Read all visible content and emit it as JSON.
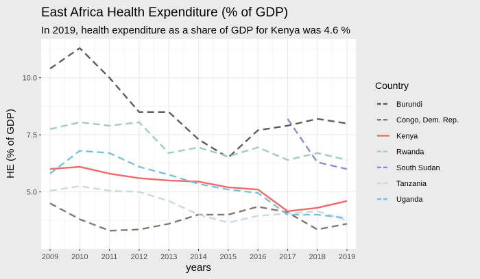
{
  "chart_data": {
    "type": "line",
    "title": "East Africa Health Expenditure  (% of GDP)",
    "subtitle": "In 2019, health expenditure as a share of GDP for Kenya was 4.6 %",
    "xlabel": "years",
    "ylabel": "HE (% of GDP)",
    "x": [
      2009,
      2010,
      2011,
      2012,
      2013,
      2014,
      2015,
      2016,
      2017,
      2018,
      2019
    ],
    "xlim": [
      2008.7,
      2019.3
    ],
    "ylim": [
      2.5,
      11.7
    ],
    "yticks": [
      5.0,
      7.5,
      10.0
    ],
    "ytick_labels": [
      "5.0",
      "7.5",
      "10.0"
    ],
    "grid": true,
    "legend_title": "Country",
    "legend_position": "right",
    "series": [
      {
        "name": "Burundi",
        "color": "#5c5c5c",
        "dash": "dashed",
        "values": [
          10.4,
          11.3,
          10.0,
          8.5,
          8.5,
          7.3,
          6.5,
          7.7,
          7.9,
          8.2,
          8.0
        ]
      },
      {
        "name": "Congo, Dem. Rep.",
        "color": "#85776f",
        "dash": "dashed",
        "values": [
          4.5,
          3.8,
          3.3,
          3.35,
          3.6,
          4.0,
          4.0,
          4.35,
          4.1,
          3.35,
          3.6
        ]
      },
      {
        "name": "Kenya",
        "color": "#f46767",
        "dash": "solid",
        "values": [
          6.0,
          6.1,
          5.8,
          5.6,
          5.5,
          5.45,
          5.2,
          5.1,
          4.15,
          4.3,
          4.6
        ]
      },
      {
        "name": "Rwanda",
        "color": "#9ecfb6",
        "dash": "dashed",
        "values": [
          7.75,
          8.05,
          7.9,
          8.05,
          6.7,
          6.95,
          6.55,
          6.95,
          6.4,
          6.7,
          6.4
        ]
      },
      {
        "name": "South Sudan",
        "color": "#9386d3",
        "dash": "dashed",
        "values": [
          null,
          null,
          null,
          null,
          null,
          null,
          null,
          null,
          8.2,
          6.3,
          6.0
        ]
      },
      {
        "name": "Tanzania",
        "color": "#c9d8e3",
        "dash": "dashed",
        "values": [
          5.05,
          5.25,
          5.05,
          5.0,
          4.6,
          4.0,
          3.65,
          3.95,
          4.05,
          4.15,
          3.75
        ]
      },
      {
        "name": "Uganda",
        "color": "#76c2de",
        "dash": "dashed",
        "values": [
          5.8,
          6.8,
          6.7,
          6.1,
          5.75,
          5.35,
          5.1,
          4.95,
          4.0,
          4.0,
          3.85
        ]
      }
    ]
  }
}
